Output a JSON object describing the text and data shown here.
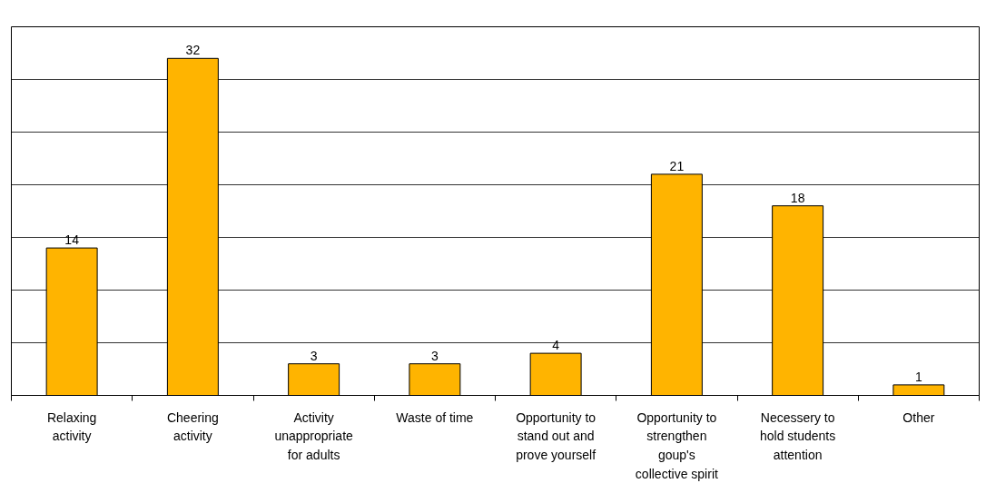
{
  "chart_data": {
    "type": "bar",
    "categories": [
      "Relaxing\nactivity",
      "Cheering\nactivity",
      "Activity\nunappropriate\nfor adults",
      "Waste of time",
      "Opportunity to\nstand out and\nprove yourself",
      "Opportunity to\nstrengthen\ngoup's\ncollective spirit",
      "Necessery to\nhold students\nattention",
      "Other"
    ],
    "values": [
      14,
      32,
      3,
      3,
      4,
      21,
      18,
      1
    ],
    "color": "#ffb400",
    "ylim": [
      0,
      35
    ],
    "yticks": [
      {
        "value": 0,
        "label": null
      },
      {
        "value": 5,
        "label": null
      },
      {
        "value": 10,
        "label": null
      },
      {
        "value": 15,
        "label": null
      },
      {
        "value": 20,
        "label": null
      },
      {
        "value": 25,
        "label": null
      },
      {
        "value": 30,
        "label": null
      },
      {
        "value": 35,
        "label": null
      }
    ],
    "grid": "y",
    "tick_labels": "x",
    "data_labels": true
  }
}
